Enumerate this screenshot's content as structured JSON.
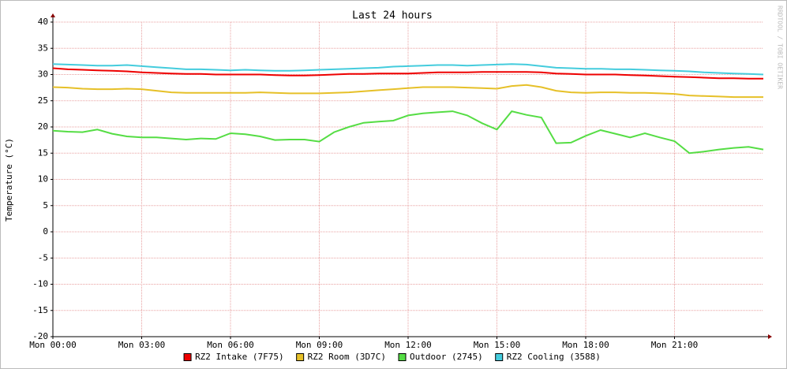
{
  "chart_data": {
    "type": "line",
    "title": "Last 24 hours",
    "y_label": "Temperature (°C)",
    "watermark": "RRDTOOL / TOBI OETIKER",
    "x": [
      0,
      0.5,
      1,
      1.5,
      2,
      2.5,
      3,
      3.5,
      4,
      4.5,
      5,
      5.5,
      6,
      6.5,
      7,
      7.5,
      8,
      8.5,
      9,
      9.5,
      10,
      10.5,
      11,
      11.5,
      12,
      12.5,
      13,
      13.5,
      14,
      14.5,
      15,
      15.5,
      16,
      16.5,
      17,
      17.5,
      18,
      18.5,
      19,
      19.5,
      20,
      20.5,
      21,
      21.5,
      22,
      22.5,
      23,
      23.5,
      24
    ],
    "xlim": [
      0,
      24
    ],
    "xticks": [
      {
        "value": 0,
        "label": "Mon 00:00"
      },
      {
        "value": 3,
        "label": "Mon 03:00"
      },
      {
        "value": 6,
        "label": "Mon 06:00"
      },
      {
        "value": 9,
        "label": "Mon 09:00"
      },
      {
        "value": 12,
        "label": "Mon 12:00"
      },
      {
        "value": 15,
        "label": "Mon 15:00"
      },
      {
        "value": 18,
        "label": "Mon 18:00"
      },
      {
        "value": 21,
        "label": "Mon 21:00"
      }
    ],
    "ylim": [
      -20,
      40
    ],
    "yticks": [
      -20,
      -15,
      -10,
      -5,
      0,
      5,
      10,
      15,
      20,
      25,
      30,
      35,
      40
    ],
    "grid": true,
    "legend": "bottom",
    "series": [
      {
        "name": "RZ2 Intake (7F75)",
        "color": "#ee0000",
        "values": [
          31.2,
          31.0,
          30.9,
          30.8,
          30.7,
          30.6,
          30.4,
          30.3,
          30.2,
          30.1,
          30.1,
          30.0,
          30.0,
          30.0,
          30.0,
          29.9,
          29.8,
          29.8,
          29.9,
          30.0,
          30.1,
          30.1,
          30.2,
          30.2,
          30.2,
          30.3,
          30.4,
          30.4,
          30.4,
          30.5,
          30.5,
          30.5,
          30.5,
          30.4,
          30.2,
          30.1,
          30.0,
          30.0,
          30.0,
          29.9,
          29.8,
          29.7,
          29.6,
          29.5,
          29.4,
          29.3,
          29.3,
          29.2,
          29.2
        ]
      },
      {
        "name": "RZ2 Room (3D7C)",
        "color": "#e6c028",
        "values": [
          27.6,
          27.5,
          27.3,
          27.2,
          27.2,
          27.3,
          27.2,
          26.9,
          26.6,
          26.5,
          26.5,
          26.5,
          26.5,
          26.5,
          26.6,
          26.5,
          26.4,
          26.4,
          26.4,
          26.5,
          26.6,
          26.8,
          27.0,
          27.2,
          27.4,
          27.6,
          27.6,
          27.6,
          27.5,
          27.4,
          27.3,
          27.8,
          28.0,
          27.6,
          26.9,
          26.6,
          26.5,
          26.6,
          26.6,
          26.5,
          26.5,
          26.4,
          26.3,
          26.0,
          25.9,
          25.8,
          25.7,
          25.7,
          25.7
        ]
      },
      {
        "name": "Outdoor (2745)",
        "color": "#55dd44",
        "values": [
          19.3,
          19.1,
          19.0,
          19.5,
          18.7,
          18.2,
          18.0,
          18.0,
          17.8,
          17.6,
          17.8,
          17.7,
          18.8,
          18.6,
          18.2,
          17.5,
          17.6,
          17.6,
          17.2,
          19.0,
          20.0,
          20.8,
          21.0,
          21.2,
          22.2,
          22.6,
          22.8,
          23.0,
          22.2,
          20.7,
          19.5,
          23.0,
          22.3,
          21.8,
          16.9,
          17.0,
          18.3,
          19.4,
          18.7,
          18.0,
          18.8,
          18.0,
          17.3,
          15.0,
          15.3,
          15.7,
          16.0,
          16.2,
          15.7
        ]
      },
      {
        "name": "RZ2 Cooling (3588)",
        "color": "#44ccdd",
        "values": [
          32.0,
          31.9,
          31.8,
          31.7,
          31.7,
          31.8,
          31.6,
          31.4,
          31.2,
          31.0,
          31.0,
          30.9,
          30.8,
          30.9,
          30.8,
          30.7,
          30.7,
          30.8,
          30.9,
          31.0,
          31.1,
          31.2,
          31.3,
          31.5,
          31.6,
          31.7,
          31.8,
          31.8,
          31.7,
          31.8,
          31.9,
          32.0,
          31.9,
          31.6,
          31.3,
          31.2,
          31.1,
          31.1,
          31.0,
          31.0,
          30.9,
          30.8,
          30.7,
          30.6,
          30.4,
          30.3,
          30.2,
          30.1,
          30.0
        ]
      }
    ]
  }
}
